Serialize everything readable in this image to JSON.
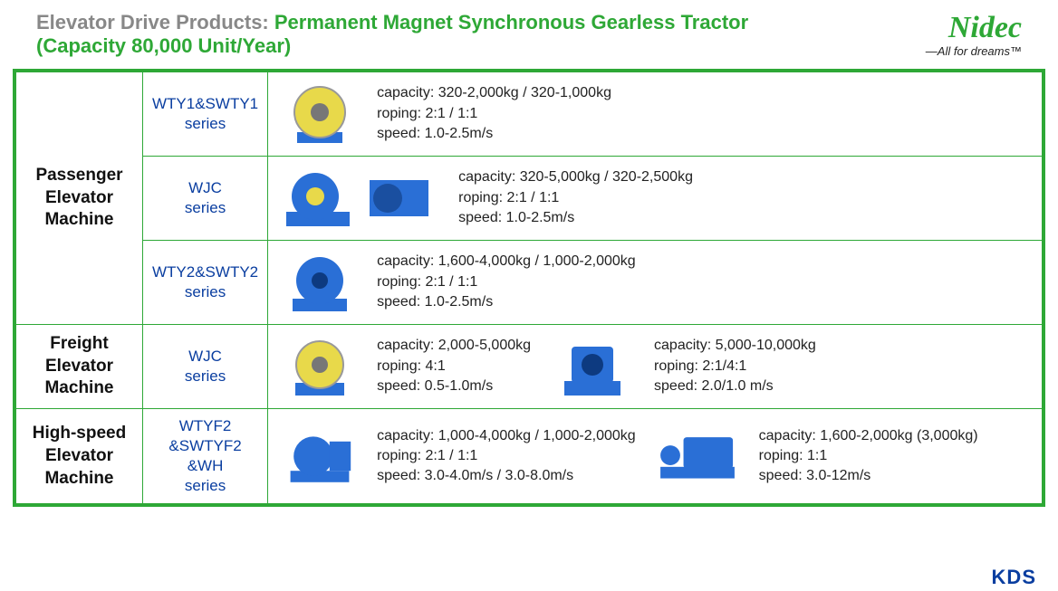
{
  "header": {
    "prefix": "Elevator Drive Products: ",
    "main": "Permanent Magnet Synchronous Gearless Tractor",
    "line2": "(Capacity 80,000 Unit/Year)",
    "logo_name": "Nidec",
    "logo_tagline": "—All for dreams™"
  },
  "colors": {
    "green": "#2ea836",
    "gray": "#888888",
    "series_blue": "#0a3ea0",
    "text": "#222222",
    "machine_blue": "#2a6fd6",
    "machine_yellow": "#e8d94a"
  },
  "categories": [
    {
      "name": "Passenger Elevator Machine",
      "rows": [
        {
          "series": "WTY1&SWTY1 series",
          "icon": "yellow",
          "specs": [
            {
              "capacity": "320-2,000kg / 320-1,000kg",
              "roping": "2:1 / 1:1",
              "speed": "1.0-2.5m/s"
            }
          ]
        },
        {
          "series": "WJC series",
          "icon": "double-blue",
          "specs": [
            {
              "capacity": "320-5,000kg / 320-2,500kg",
              "roping": "2:1 / 1:1",
              "speed": "1.0-2.5m/s"
            }
          ]
        },
        {
          "series": "WTY2&SWTY2 series",
          "icon": "blue",
          "specs": [
            {
              "capacity": "1,600-4,000kg / 1,000-2,000kg",
              "roping": "2:1 / 1:1",
              "speed": "1.0-2.5m/s"
            }
          ]
        }
      ]
    },
    {
      "name": "Freight Elevator Machine",
      "rows": [
        {
          "series": "WJC series",
          "icon": "yellow-blue",
          "specs": [
            {
              "capacity": "2,000-5,000kg",
              "roping": "4:1",
              "speed": "0.5-1.0m/s"
            },
            {
              "capacity": "5,000-10,000kg",
              "roping": "2:1/4:1",
              "speed": "2.0/1.0 m/s"
            }
          ]
        }
      ]
    },
    {
      "name": "High-speed Elevator Machine",
      "rows": [
        {
          "series": "WTYF2 &SWTYF2 &WH series",
          "icon": "blue-pair",
          "specs": [
            {
              "capacity": "1,000-4,000kg / 1,000-2,000kg",
              "roping": "2:1 / 1:1",
              "speed": "3.0-4.0m/s / 3.0-8.0m/s"
            },
            {
              "capacity": "1,600-2,000kg (3,000kg)",
              "roping": "1:1",
              "speed": "3.0-12m/s"
            }
          ]
        }
      ]
    }
  ],
  "labels": {
    "capacity": "capacity:",
    "roping": "roping:",
    "speed": "speed:"
  },
  "footer_brand": "KDS"
}
